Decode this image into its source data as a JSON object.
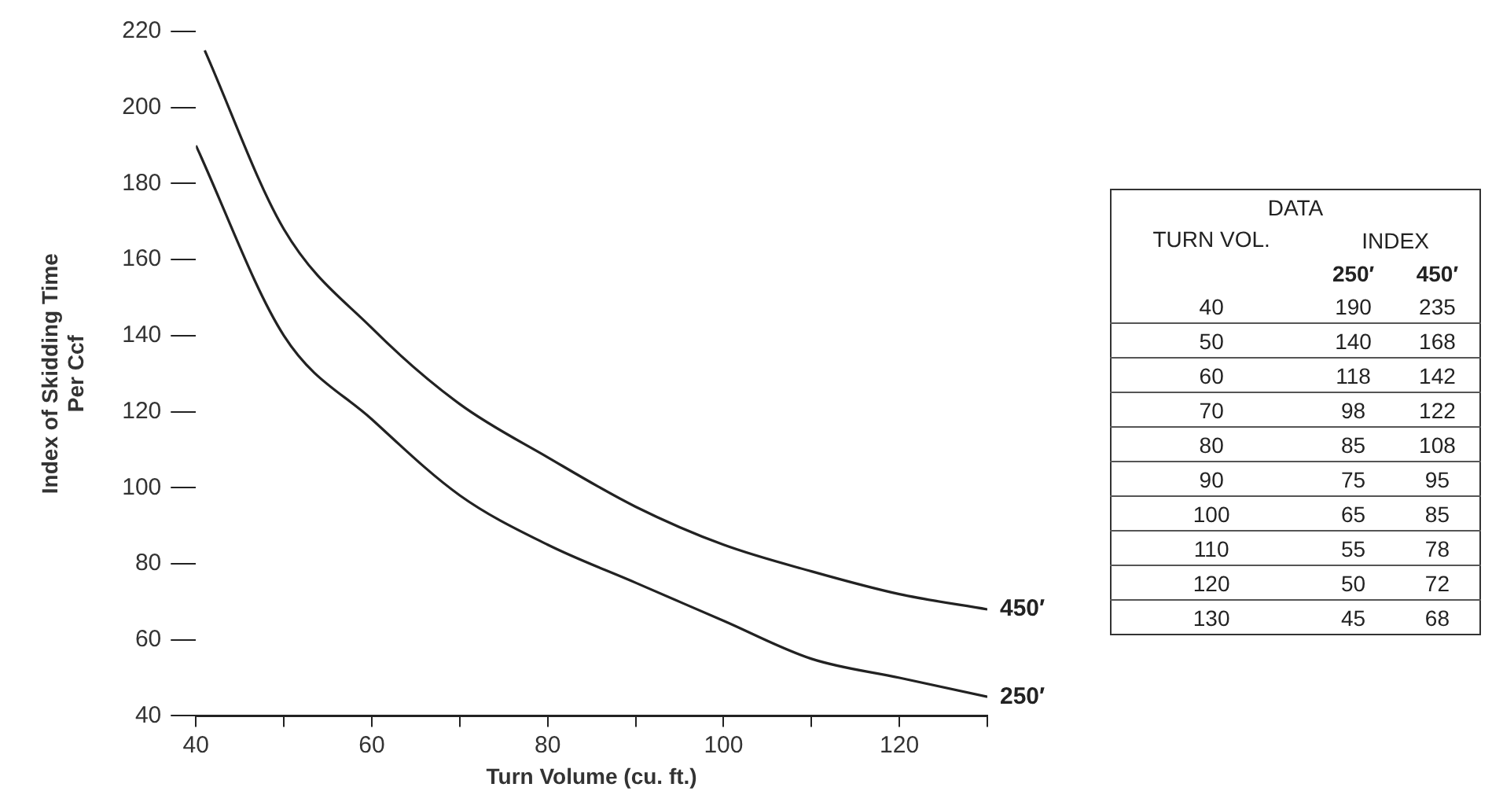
{
  "chart_data": {
    "type": "line",
    "xlabel": "Turn Volume (cu. ft.)",
    "ylabel": "Index of Skidding Time\nPer Ccf",
    "xlim": [
      40,
      130
    ],
    "xticks": [
      40,
      {
        "value": 50,
        "label": null
      },
      60,
      {
        "value": 70,
        "label": null
      },
      80,
      {
        "value": 90,
        "label": null
      },
      100,
      {
        "value": 110,
        "label": null
      },
      120,
      {
        "value": 130,
        "label": null
      }
    ],
    "ylim": [
      40,
      220
    ],
    "yticks": [
      40,
      60,
      80,
      100,
      120,
      140,
      160,
      180,
      200,
      220
    ],
    "grid": false,
    "legend": false,
    "marker": "none",
    "line_style": "solid",
    "series": [
      {
        "name": "450′",
        "color": "#222222",
        "x": [
          41,
          50,
          60,
          70,
          80,
          90,
          100,
          110,
          120,
          130
        ],
        "values": [
          215,
          168,
          142,
          122,
          108,
          95,
          85,
          78,
          72,
          68
        ]
      },
      {
        "name": "250′",
        "color": "#222222",
        "x": [
          40,
          50,
          60,
          70,
          80,
          90,
          100,
          110,
          120,
          130
        ],
        "values": [
          190,
          140,
          118,
          98,
          85,
          75,
          65,
          55,
          50,
          45
        ]
      }
    ],
    "annotations": [
      "DATA",
      "TURN VOL.",
      "INDEX",
      "250′",
      "450′",
      "40",
      "190",
      "235",
      "50",
      "140",
      "168",
      "60",
      "118",
      "142",
      "70",
      "98",
      "122",
      "80",
      "85",
      "108",
      "90",
      "75",
      "95",
      "100",
      "65",
      "85",
      "110",
      "55",
      "78",
      "120",
      "50",
      "72",
      "130",
      "45",
      "68"
    ]
  }
}
